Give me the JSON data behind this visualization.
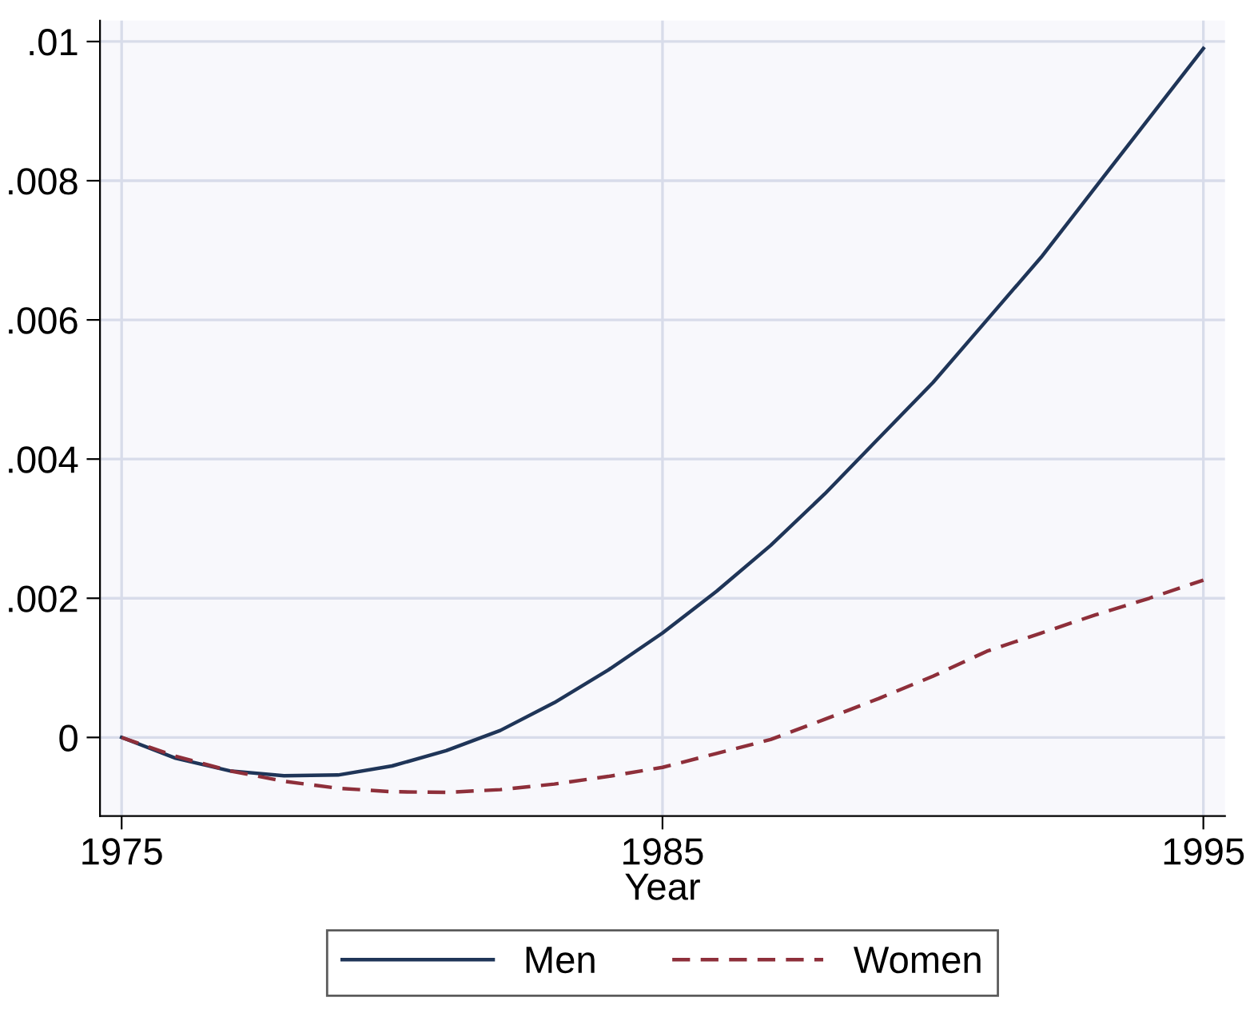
{
  "chart_data": {
    "type": "line",
    "xlabel": "Year",
    "x": [
      1975,
      1976,
      1977,
      1978,
      1979,
      1980,
      1981,
      1982,
      1983,
      1984,
      1985,
      1986,
      1987,
      1988,
      1989,
      1990,
      1991,
      1992,
      1993,
      1994,
      1995
    ],
    "series": [
      {
        "name": "Men",
        "color": "#1f3558",
        "line_style": "solid",
        "values": [
          0,
          -0.0003,
          -0.00048,
          -0.00055,
          -0.00054,
          -0.00041,
          -0.00019,
          0.0001,
          0.0005,
          0.00097,
          0.0015,
          0.0021,
          0.00276,
          0.0035,
          0.0043,
          0.0051,
          0.006,
          0.0069,
          0.0079,
          0.0089,
          0.0099
        ]
      },
      {
        "name": "Women",
        "color": "#8e2f3a",
        "line_style": "dashed",
        "values": [
          0,
          -0.00027,
          -0.00048,
          -0.00063,
          -0.00073,
          -0.00078,
          -0.00079,
          -0.00075,
          -0.00067,
          -0.00056,
          -0.00043,
          -0.00023,
          -3e-05,
          0.00026,
          0.00056,
          0.00088,
          0.00124,
          0.0015,
          0.00176,
          0.002,
          0.00226
        ]
      }
    ],
    "xlim": [
      1974.6,
      1995.4
    ],
    "ylim": [
      -0.00113,
      0.0103
    ],
    "xticks": [
      1975,
      1985,
      1995
    ],
    "yticks": [
      {
        "value": 0,
        "label": "0"
      },
      {
        "value": 0.002,
        "label": ".002"
      },
      {
        "value": 0.004,
        "label": ".004"
      },
      {
        "value": 0.006,
        "label": ".006"
      },
      {
        "value": 0.008,
        "label": ".008"
      },
      {
        "value": 0.01,
        "label": ".01"
      }
    ],
    "grid": true,
    "legend": "bottom",
    "marker": "none"
  }
}
